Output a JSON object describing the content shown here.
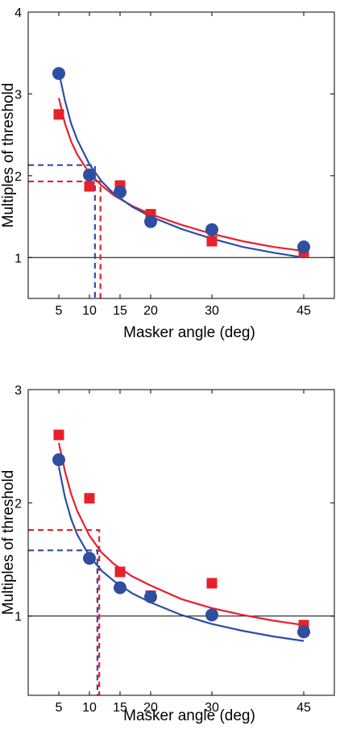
{
  "chart_data": [
    {
      "type": "scatter",
      "title": "",
      "xlabel": "Masker angle (deg)",
      "ylabel": "Multiples of threshold",
      "xlim": [
        0,
        50
      ],
      "ylim": [
        0.5,
        4
      ],
      "xticks": [
        5,
        10,
        15,
        20,
        30,
        45
      ],
      "xtick_labels": [
        "5",
        "10",
        "15",
        "20",
        "30",
        "45"
      ],
      "yticks": [
        1,
        2,
        3,
        4
      ],
      "ytick_labels": [
        "1",
        "2",
        "3",
        "4"
      ],
      "reference_line_y": 1,
      "grid": false,
      "series": [
        {
          "marker": "square",
          "color": "#e8202a",
          "x": [
            5,
            10,
            15,
            20,
            30,
            45
          ],
          "y": [
            2.75,
            1.87,
            1.88,
            1.53,
            1.2,
            1.07
          ],
          "fit_x": [
            5,
            6,
            7,
            8,
            10,
            12,
            14,
            17,
            20,
            25,
            30,
            35,
            40,
            45
          ],
          "fit_y": [
            2.95,
            2.64,
            2.42,
            2.26,
            2.03,
            1.88,
            1.76,
            1.63,
            1.53,
            1.4,
            1.29,
            1.2,
            1.13,
            1.08
          ],
          "threshold_x": 11.8,
          "threshold_y": 1.93
        },
        {
          "marker": "circle",
          "color": "#2e4ea1",
          "x": [
            5,
            10,
            15,
            20,
            30,
            45
          ],
          "y": [
            3.25,
            2.01,
            1.8,
            1.44,
            1.34,
            1.13
          ],
          "fit_x": [
            5,
            6,
            7,
            8,
            10,
            12,
            14,
            17,
            20,
            25,
            30,
            35,
            40,
            45
          ],
          "fit_y": [
            3.27,
            2.92,
            2.64,
            2.44,
            2.14,
            1.93,
            1.78,
            1.62,
            1.5,
            1.35,
            1.23,
            1.13,
            1.06,
            1.0
          ],
          "threshold_x": 10.9,
          "threshold_y": 2.13
        }
      ]
    },
    {
      "type": "scatter",
      "title": "",
      "xlabel": "Masker angle (deg)",
      "ylabel": "Multiples of threshold",
      "xlim": [
        0,
        50
      ],
      "ylim": [
        0.3,
        3
      ],
      "xticks": [
        5,
        10,
        15,
        20,
        30,
        45
      ],
      "xtick_labels": [
        "5",
        "10",
        "15",
        "20",
        "30",
        "45"
      ],
      "yticks": [
        1,
        2,
        3
      ],
      "ytick_labels": [
        "1",
        "2",
        "3"
      ],
      "reference_line_y": 1,
      "grid": false,
      "series": [
        {
          "marker": "square",
          "color": "#e8202a",
          "x": [
            5,
            10,
            15,
            20,
            30,
            45
          ],
          "y": [
            2.6,
            2.04,
            1.39,
            1.18,
            1.29,
            0.92
          ],
          "fit_x": [
            5,
            6,
            7,
            8,
            10,
            12,
            14,
            17,
            20,
            25,
            30,
            35,
            40,
            45
          ],
          "fit_y": [
            2.53,
            2.28,
            2.08,
            1.93,
            1.71,
            1.56,
            1.46,
            1.35,
            1.27,
            1.15,
            1.07,
            1.01,
            0.96,
            0.92
          ],
          "threshold_x": 11.6,
          "threshold_y": 1.76
        },
        {
          "marker": "circle",
          "color": "#2e4ea1",
          "x": [
            5,
            10,
            15,
            20,
            30,
            45
          ],
          "y": [
            2.38,
            1.51,
            1.25,
            1.17,
            1.01,
            0.86
          ],
          "fit_x": [
            5,
            6,
            7,
            8,
            10,
            12,
            14,
            17,
            20,
            25,
            30,
            35,
            40,
            45
          ],
          "fit_y": [
            2.32,
            2.05,
            1.86,
            1.72,
            1.53,
            1.4,
            1.31,
            1.2,
            1.12,
            1.01,
            0.93,
            0.87,
            0.82,
            0.78
          ],
          "threshold_x": 11.3,
          "threshold_y": 1.58
        }
      ]
    }
  ]
}
